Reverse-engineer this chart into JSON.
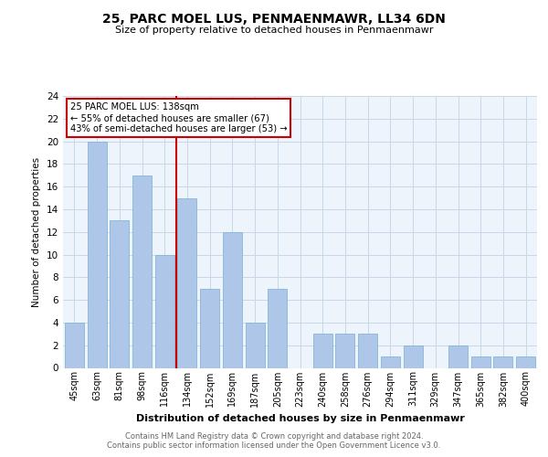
{
  "title": "25, PARC MOEL LUS, PENMAENMAWR, LL34 6DN",
  "subtitle": "Size of property relative to detached houses in Penmaenmawr",
  "xlabel": "Distribution of detached houses by size in Penmaenmawr",
  "ylabel": "Number of detached properties",
  "categories": [
    "45sqm",
    "63sqm",
    "81sqm",
    "98sqm",
    "116sqm",
    "134sqm",
    "152sqm",
    "169sqm",
    "187sqm",
    "205sqm",
    "223sqm",
    "240sqm",
    "258sqm",
    "276sqm",
    "294sqm",
    "311sqm",
    "329sqm",
    "347sqm",
    "365sqm",
    "382sqm",
    "400sqm"
  ],
  "values": [
    4,
    20,
    13,
    17,
    10,
    15,
    7,
    12,
    4,
    7,
    0,
    3,
    3,
    3,
    1,
    2,
    0,
    2,
    1,
    1,
    1
  ],
  "bar_color": "#aec6e8",
  "bar_edge_color": "#7bafd4",
  "vline_index": 5,
  "property_line_label": "25 PARC MOEL LUS: 138sqm",
  "annotation_line1": "← 55% of detached houses are smaller (67)",
  "annotation_line2": "43% of semi-detached houses are larger (53) →",
  "vline_color": "#cc0000",
  "box_color": "#cc0000",
  "ylim": [
    0,
    24
  ],
  "yticks": [
    0,
    2,
    4,
    6,
    8,
    10,
    12,
    14,
    16,
    18,
    20,
    22,
    24
  ],
  "grid_color": "#c8d8e8",
  "bg_color": "#eef4fb",
  "footer1": "Contains HM Land Registry data © Crown copyright and database right 2024.",
  "footer2": "Contains public sector information licensed under the Open Government Licence v3.0."
}
